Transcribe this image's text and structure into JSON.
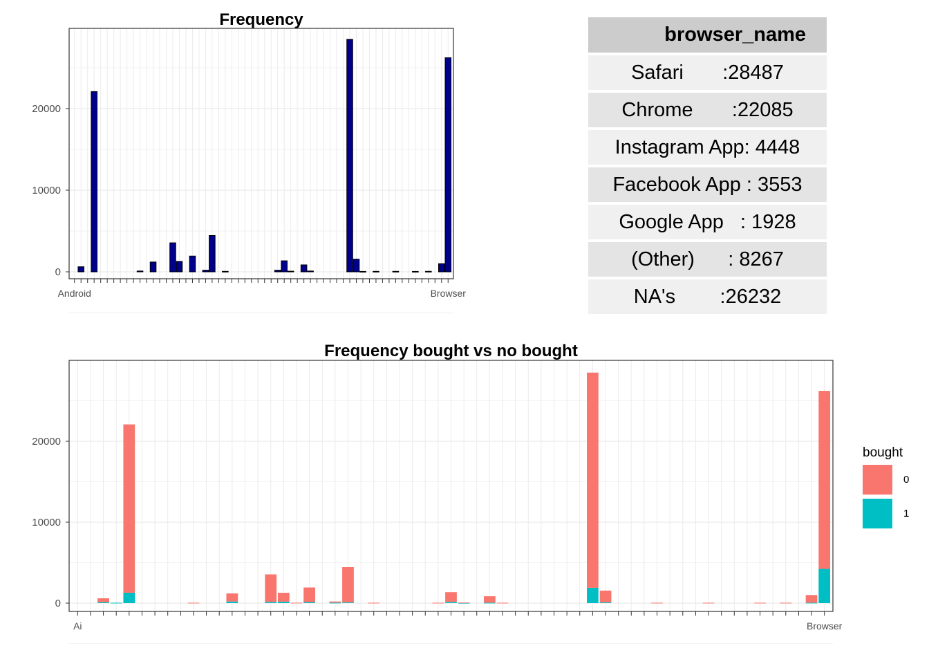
{
  "chart_data": [
    {
      "type": "bar",
      "title": "Frequency",
      "xlabel": "",
      "ylabel": "",
      "ylim": [
        0,
        30000
      ],
      "yticks": [
        0,
        10000,
        20000
      ],
      "ytick_labels": [
        "0",
        "10000",
        "20000"
      ],
      "first_tick_label": "Android",
      "last_tick_label": "Browser",
      "bar_color": "#00008b",
      "grid": true,
      "values": [
        0,
        620,
        0,
        22085,
        0,
        0,
        0,
        0,
        0,
        0,
        100,
        0,
        1200,
        0,
        0,
        3553,
        1280,
        0,
        1928,
        0,
        200,
        4448,
        0,
        60,
        0,
        0,
        0,
        0,
        0,
        0,
        0,
        200,
        1350,
        80,
        0,
        850,
        100,
        0,
        0,
        0,
        0,
        0,
        28487,
        1550,
        50,
        0,
        60,
        0,
        0,
        60,
        0,
        0,
        50,
        0,
        60,
        0,
        1000,
        26232
      ]
    },
    {
      "type": "bar",
      "stacked": true,
      "title": "Frequency bought vs no bought",
      "xlabel": "",
      "ylabel": "",
      "ylim": [
        0,
        30000
      ],
      "yticks": [
        0,
        10000,
        20000
      ],
      "ytick_labels": [
        "0",
        "10000",
        "20000"
      ],
      "first_tick_label": "Ai",
      "last_tick_label": "Browser",
      "grid": true,
      "legend_position": "right",
      "legend_title": "bought",
      "series": [
        {
          "name": "0",
          "color": "#f8766d",
          "values": [
            0,
            0,
            480,
            0,
            20800,
            0,
            0,
            0,
            0,
            50,
            0,
            0,
            1000,
            0,
            0,
            3400,
            1100,
            50,
            1800,
            0,
            150,
            4350,
            0,
            50,
            0,
            0,
            0,
            0,
            50,
            1200,
            50,
            0,
            800,
            50,
            0,
            0,
            0,
            0,
            0,
            0,
            26600,
            1450,
            0,
            0,
            0,
            50,
            0,
            0,
            0,
            50,
            0,
            0,
            0,
            50,
            0,
            50,
            0,
            950,
            22000
          ]
        },
        {
          "name": "1",
          "color": "#00bfc4",
          "values": [
            0,
            0,
            120,
            50,
            1285,
            0,
            0,
            0,
            0,
            0,
            0,
            0,
            200,
            0,
            0,
            150,
            180,
            0,
            128,
            0,
            50,
            98,
            0,
            0,
            0,
            0,
            0,
            0,
            0,
            150,
            30,
            0,
            50,
            0,
            0,
            0,
            0,
            0,
            0,
            0,
            1887,
            100,
            0,
            0,
            0,
            0,
            0,
            0,
            0,
            0,
            0,
            0,
            0,
            0,
            0,
            0,
            0,
            50,
            4232
          ]
        }
      ]
    }
  ],
  "summary_table": {
    "header": "browser_name",
    "rows": [
      "Safari       :28487",
      "Chrome       :22085",
      "Instagram App: 4448",
      "Facebook App : 3553",
      "Google App   : 1928",
      "(Other)      : 8267",
      "NA's        :26232"
    ]
  }
}
